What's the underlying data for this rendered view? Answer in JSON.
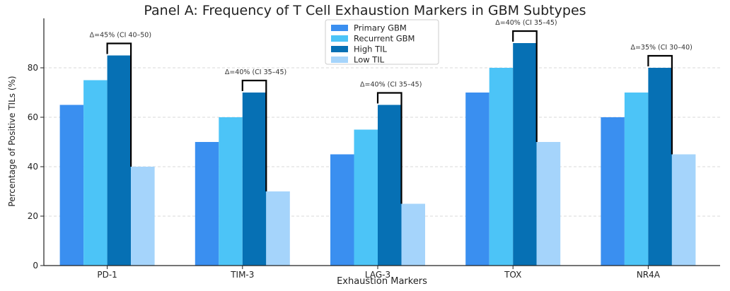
{
  "chart_data": {
    "type": "bar",
    "title": "Panel A: Frequency of T Cell Exhaustion Markers in GBM Subtypes",
    "xlabel": "Exhaustion Markers",
    "ylabel": "Percentage of Positive TILs (%)",
    "ylim": [
      0,
      100
    ],
    "yticks": [
      0,
      20,
      40,
      60,
      80
    ],
    "grid": true,
    "legend_position": "top-center",
    "categories": [
      "PD-1",
      "TIM-3",
      "LAG-3",
      "TOX",
      "NR4A"
    ],
    "series": [
      {
        "name": "Primary GBM",
        "color": "#3a8ff0",
        "values": [
          65,
          50,
          45,
          70,
          60
        ]
      },
      {
        "name": "Recurrent GBM",
        "color": "#4cc4f7",
        "values": [
          75,
          60,
          55,
          80,
          70
        ]
      },
      {
        "name": "High TIL",
        "color": "#0670b4",
        "values": [
          85,
          70,
          65,
          90,
          80
        ]
      },
      {
        "name": "Low TIL",
        "color": "#a5d4fb",
        "values": [
          40,
          30,
          25,
          50,
          45
        ]
      }
    ],
    "annotations": [
      {
        "category": "PD-1",
        "text": "Δ=45% (CI 40–50)"
      },
      {
        "category": "TIM-3",
        "text": "Δ=40% (CI 35–45)"
      },
      {
        "category": "LAG-3",
        "text": "Δ=40% (CI 35–45)"
      },
      {
        "category": "TOX",
        "text": "Δ=40% (CI 35–45)"
      },
      {
        "category": "NR4A",
        "text": "Δ=35% (CI 30–40)"
      }
    ]
  }
}
